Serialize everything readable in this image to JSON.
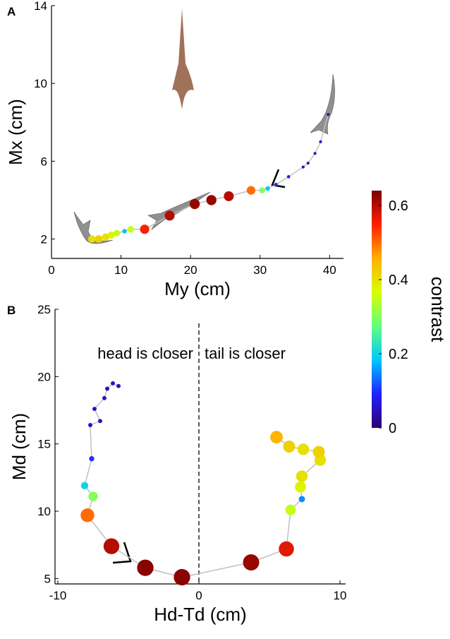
{
  "chart_data": [
    {
      "type": "scatter",
      "panel": "A",
      "xlabel": "My (cm)",
      "ylabel": "Mx (cm)",
      "xlim": [
        0,
        42
      ],
      "ylim": [
        1,
        14
      ],
      "xticks": [
        0,
        10,
        20,
        30,
        40
      ],
      "yticks": [
        2,
        6,
        10,
        14
      ],
      "line_color": "#c0c0c0",
      "x": [
        39.8,
        38.7,
        37.9,
        36.9,
        36.2,
        34.1,
        32.3,
        31.1,
        30.3,
        28.7,
        25.5,
        23.0,
        20.6,
        17.0,
        13.4,
        11.4,
        10.5,
        9.4,
        8.6,
        7.8,
        6.8,
        5.8
      ],
      "y": [
        8.4,
        7.0,
        6.4,
        5.9,
        5.7,
        5.2,
        4.8,
        4.6,
        4.5,
        4.5,
        4.2,
        4.0,
        3.8,
        3.2,
        2.5,
        2.5,
        2.4,
        2.3,
        2.2,
        2.1,
        2.0,
        2.0
      ],
      "contrast": [
        0.05,
        0.05,
        0.05,
        0.05,
        0.05,
        0.08,
        0.1,
        0.18,
        0.3,
        0.5,
        0.6,
        0.62,
        0.62,
        0.6,
        0.55,
        0.35,
        0.18,
        0.35,
        0.38,
        0.4,
        0.42,
        0.4
      ]
    },
    {
      "type": "scatter",
      "panel": "B",
      "xlabel": "Hd-Td (cm)",
      "ylabel": "Md (cm)",
      "xlim": [
        -10.2,
        10.4
      ],
      "ylim": [
        4.6,
        25
      ],
      "xticks": [
        -10,
        0,
        10
      ],
      "yticks": [
        5,
        10,
        15,
        20,
        25
      ],
      "line_color": "#c0c0c0",
      "vline": 0,
      "annotations": [
        "head is closer",
        "tail is closer"
      ],
      "x": [
        -5.7,
        -6.1,
        -6.5,
        -6.7,
        -7.4,
        -7.0,
        -7.7,
        -7.6,
        -8.1,
        -7.5,
        -7.9,
        -6.2,
        -3.8,
        -1.2,
        3.7,
        6.2,
        6.5,
        7.3,
        7.2,
        7.3,
        8.6,
        8.5,
        7.4,
        6.4,
        5.5
      ],
      "y": [
        19.3,
        19.5,
        19.1,
        18.4,
        17.6,
        16.7,
        16.4,
        13.9,
        11.9,
        11.1,
        9.7,
        7.4,
        5.8,
        5.1,
        6.2,
        7.2,
        10.1,
        10.9,
        11.8,
        12.6,
        13.8,
        14.4,
        14.6,
        14.8,
        15.5
      ],
      "contrast": [
        0.05,
        0.05,
        0.05,
        0.05,
        0.05,
        0.05,
        0.05,
        0.1,
        0.2,
        0.3,
        0.5,
        0.6,
        0.63,
        0.63,
        0.62,
        0.57,
        0.35,
        0.15,
        0.38,
        0.4,
        0.4,
        0.42,
        0.4,
        0.42,
        0.45
      ]
    },
    {
      "type": "colorbar",
      "label": "contrast",
      "clim": [
        0,
        0.64
      ],
      "ticks": [
        0,
        0.2,
        0.4,
        0.6
      ],
      "colormap": [
        "#30006e",
        "#2020ff",
        "#00c8ff",
        "#60ff80",
        "#d8ff00",
        "#ffb000",
        "#ff2000",
        "#7a0000"
      ]
    }
  ]
}
